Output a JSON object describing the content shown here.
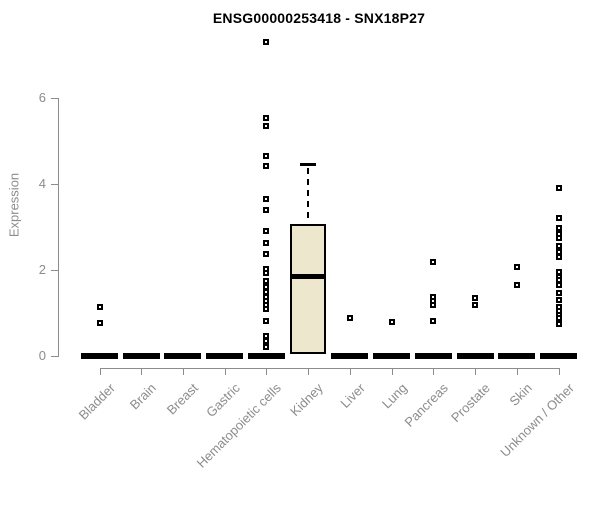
{
  "chart_data": {
    "type": "boxplot",
    "title": "ENSG00000253418 - SNX18P27",
    "ylabel": "Expression",
    "xlabel": "",
    "yticks": [
      0,
      2,
      4,
      6
    ],
    "ylim": [
      0,
      7.5
    ],
    "grid": false,
    "legend": "none",
    "colors": {
      "axis": "#8c8c8c",
      "tick_text": "#8c8c8c",
      "title_text": "#000000",
      "box_fill": "#ede8cd",
      "box_border": "#000000",
      "median": "#000000",
      "outlier_border": "#000000",
      "outlier_fill": "#ffffff",
      "background": "#ffffff"
    },
    "categories": [
      "Bladder",
      "Brain",
      "Breast",
      "Gastric",
      "Hematopoietic cells",
      "Kidney",
      "Liver",
      "Lung",
      "Pancreas",
      "Prostate",
      "Skin",
      "Unknown / Other"
    ],
    "boxes": [
      {
        "label": "Bladder",
        "median": 0,
        "q1": 0,
        "q3": 0,
        "whisker_low": 0,
        "whisker_high": 0,
        "outliers": [
          1.15,
          0.77
        ]
      },
      {
        "label": "Brain",
        "median": 0,
        "q1": 0,
        "q3": 0,
        "whisker_low": 0,
        "whisker_high": 0,
        "outliers": []
      },
      {
        "label": "Breast",
        "median": 0,
        "q1": 0,
        "q3": 0,
        "whisker_low": 0,
        "whisker_high": 0,
        "outliers": []
      },
      {
        "label": "Gastric",
        "median": 0,
        "q1": 0,
        "q3": 0,
        "whisker_low": 0,
        "whisker_high": 0,
        "outliers": []
      },
      {
        "label": "Hematopoietic cells",
        "median": 0,
        "q1": 0,
        "q3": 0,
        "whisker_low": 0,
        "whisker_high": 0,
        "outliers": [
          7.3,
          5.53,
          5.35,
          4.65,
          4.42,
          3.65,
          3.4,
          2.9,
          2.63,
          2.37,
          2.02,
          1.93,
          1.74,
          1.6,
          1.49,
          1.37,
          1.28,
          1.19,
          1.09,
          0.81,
          0.47,
          0.35,
          0.21
        ]
      },
      {
        "label": "Kidney",
        "median": 1.85,
        "q1": 0.05,
        "q3": 3.07,
        "whisker_low": 0.05,
        "whisker_high": 4.45,
        "outliers": []
      },
      {
        "label": "Liver",
        "median": 0,
        "q1": 0,
        "q3": 0,
        "whisker_low": 0,
        "whisker_high": 0,
        "outliers": [
          0.88
        ]
      },
      {
        "label": "Lung",
        "median": 0,
        "q1": 0,
        "q3": 0,
        "whisker_low": 0,
        "whisker_high": 0,
        "outliers": [
          0.79
        ]
      },
      {
        "label": "Pancreas",
        "median": 0,
        "q1": 0,
        "q3": 0,
        "whisker_low": 0,
        "whisker_high": 0,
        "outliers": [
          2.19,
          1.37,
          1.28,
          1.19,
          0.81
        ]
      },
      {
        "label": "Prostate",
        "median": 0,
        "q1": 0,
        "q3": 0,
        "whisker_low": 0,
        "whisker_high": 0,
        "outliers": [
          1.35,
          1.19
        ]
      },
      {
        "label": "Skin",
        "median": 0,
        "q1": 0,
        "q3": 0,
        "whisker_low": 0,
        "whisker_high": 0,
        "outliers": [
          2.07,
          1.65
        ]
      },
      {
        "label": "Unknown / Other",
        "median": 0,
        "q1": 0,
        "q3": 0,
        "whisker_low": 0,
        "whisker_high": 0,
        "outliers": [
          3.91,
          3.21,
          2.98,
          2.84,
          2.74,
          2.56,
          2.42,
          2.3,
          1.95,
          1.84,
          1.77,
          1.65,
          1.47,
          1.3,
          1.14,
          1.05,
          0.95,
          0.88,
          0.74
        ]
      }
    ]
  }
}
